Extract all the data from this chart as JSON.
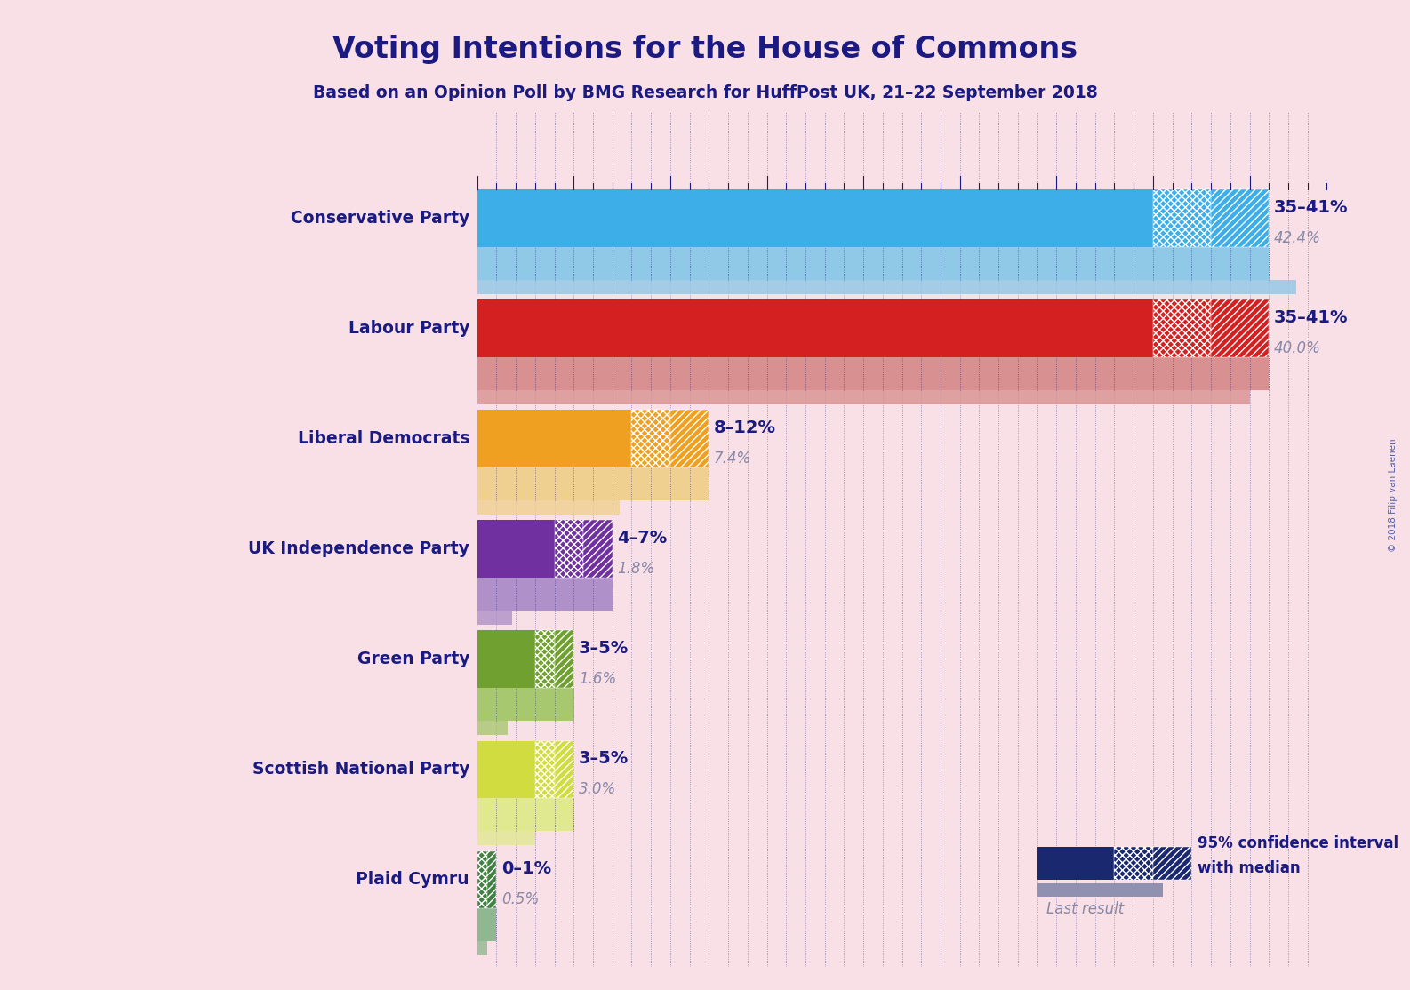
{
  "title": "Voting Intentions for the House of Commons",
  "subtitle": "Based on an Opinion Poll by BMG Research for HuffPost UK, 21–22 September 2018",
  "copyright": "© 2018 Filip van Laenen",
  "background_color": "#f9e0e6",
  "parties": [
    "Conservative Party",
    "Labour Party",
    "Liberal Democrats",
    "UK Independence Party",
    "Green Party",
    "Scottish National Party",
    "Plaid Cymru"
  ],
  "ci_low": [
    35,
    35,
    8,
    4,
    3,
    3,
    0
  ],
  "ci_high": [
    41,
    41,
    12,
    7,
    5,
    5,
    1
  ],
  "median": [
    38,
    38,
    10,
    5.5,
    4,
    4,
    0.5
  ],
  "last_result": [
    42.4,
    40.0,
    7.4,
    1.8,
    1.6,
    3.0,
    0.5
  ],
  "ci_labels": [
    "35–41%",
    "35–41%",
    "8–12%",
    "4–7%",
    "3–5%",
    "3–5%",
    "0–1%"
  ],
  "last_labels": [
    "42.4%",
    "40.0%",
    "7.4%",
    "1.8%",
    "1.6%",
    "3.0%",
    "0.5%"
  ],
  "party_colors": [
    "#3daee8",
    "#d42020",
    "#f0a020",
    "#7030a0",
    "#70a030",
    "#d0dc40",
    "#408040"
  ],
  "party_colors_light": [
    "#90c8e8",
    "#d89090",
    "#f0d090",
    "#b090c8",
    "#a8c870",
    "#e0e890",
    "#90b890"
  ],
  "label_color": "#1a1a80",
  "last_color": "#8888a8",
  "legend_ci_color": "#1a2870",
  "legend_last_color": "#9090b0",
  "xmax": 44
}
